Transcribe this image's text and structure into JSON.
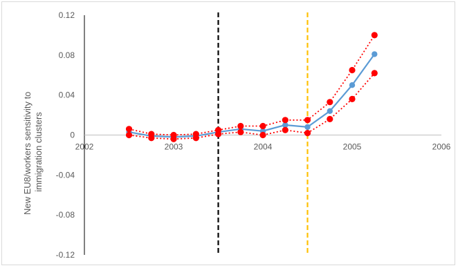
{
  "chart_data": {
    "type": "line",
    "ylabel": "New EU8/workers sensitivity to immigration clusters",
    "ylabel_lines": [
      "New EU8/workers sensitivity to",
      "immigration clusters"
    ],
    "xlim": [
      2002,
      2006
    ],
    "ylim": [
      -0.12,
      0.12
    ],
    "x_ticks": [
      2002,
      2003,
      2004,
      2005,
      2006
    ],
    "x_tick_labels": [
      "2002",
      "2003",
      "2004",
      "2005",
      "2006"
    ],
    "y_ticks": [
      0.12,
      0.08,
      0.04,
      0,
      -0.04,
      -0.08,
      -0.12
    ],
    "y_tick_labels": [
      "0.12",
      "0.08",
      "0.04",
      "0",
      "-0.04",
      "-0.08",
      "-0.12"
    ],
    "x": [
      2002.5,
      2002.75,
      2003.0,
      2003.25,
      2003.5,
      2003.75,
      2004.0,
      2004.25,
      2004.5,
      2004.75,
      2005.0,
      2005.25
    ],
    "series": [
      {
        "style": "solid",
        "color": "#5b9bd5",
        "values": [
          0.003,
          -0.001,
          -0.002,
          -0.001,
          0.003,
          0.006,
          0.004,
          0.01,
          0.008,
          0.024,
          0.05,
          0.081
        ]
      },
      {
        "style": "dotted",
        "color": "#ff0000",
        "values": [
          0.006,
          0.001,
          0.0,
          0.001,
          0.005,
          0.009,
          0.009,
          0.015,
          0.015,
          0.033,
          0.065,
          0.1
        ]
      },
      {
        "style": "dotted",
        "color": "#ff0000",
        "values": [
          0.0,
          -0.003,
          -0.004,
          -0.003,
          0.001,
          0.003,
          0.0,
          0.005,
          0.002,
          0.016,
          0.036,
          0.062
        ]
      }
    ],
    "vlines": [
      {
        "x": 2003.5,
        "color": "#000000",
        "style": "dashed"
      },
      {
        "x": 2004.5,
        "color": "#ffc000",
        "style": "dashed"
      }
    ],
    "grid": false,
    "legend": "none"
  }
}
